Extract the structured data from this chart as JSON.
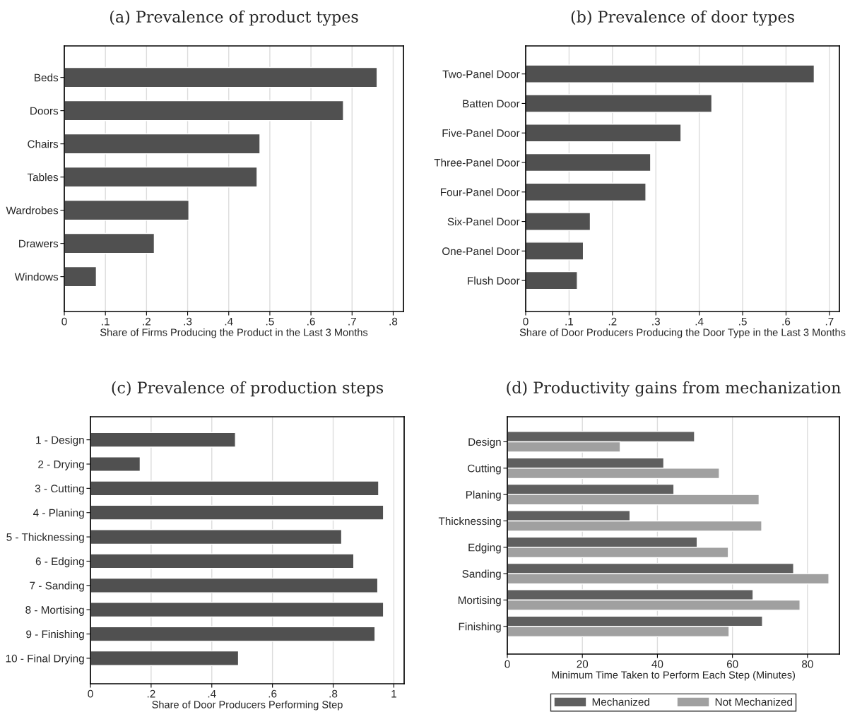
{
  "chart_data": [
    {
      "type": "bar",
      "orientation": "horizontal",
      "title": "(a) Prevalence of product types",
      "xlabel": "Share of Firms Producing the Product in the Last 3 Months",
      "categories": [
        "Beds",
        "Doors",
        "Chairs",
        "Tables",
        "Wardrobes",
        "Drawers",
        "Windows"
      ],
      "series": [
        {
          "color": "#505050",
          "values": [
            0.761,
            0.679,
            0.476,
            0.469,
            0.303,
            0.219,
            0.078
          ]
        }
      ],
      "xlim": [
        0,
        0.825
      ],
      "xticks": [
        0,
        {
          "value": 0.1,
          "label": ".1"
        },
        {
          "value": 0.2,
          "label": ".2"
        },
        {
          "value": 0.3,
          "label": ".3"
        },
        {
          "value": 0.4,
          "label": ".4"
        },
        {
          "value": 0.5,
          "label": ".5"
        },
        {
          "value": 0.6,
          "label": ".6"
        },
        {
          "value": 0.7,
          "label": ".7"
        },
        {
          "value": 0.8,
          "label": ".8"
        }
      ],
      "grid": "x"
    },
    {
      "type": "bar",
      "orientation": "horizontal",
      "title": "(b) Prevalence of door types",
      "xlabel": "Share of Door Producers Producing the Door Type in the Last 3 Months",
      "categories": [
        "Two-Panel Door",
        "Batten Door",
        "Five-Panel Door",
        "Three-Panel Door",
        "Four-Panel Door",
        "Six-Panel Door",
        "One-Panel Door",
        "Flush Door"
      ],
      "series": [
        {
          "color": "#505050",
          "values": [
            0.665,
            0.429,
            0.358,
            0.288,
            0.277,
            0.149,
            0.133,
            0.119
          ]
        }
      ],
      "xlim": [
        0,
        0.723
      ],
      "xticks": [
        0,
        {
          "value": 0.1,
          "label": ".1"
        },
        {
          "value": 0.2,
          "label": ".2"
        },
        {
          "value": 0.3,
          "label": ".3"
        },
        {
          "value": 0.4,
          "label": ".4"
        },
        {
          "value": 0.5,
          "label": ".5"
        },
        {
          "value": 0.6,
          "label": ".6"
        },
        {
          "value": 0.7,
          "label": ".7"
        }
      ],
      "grid": "x"
    },
    {
      "type": "bar",
      "orientation": "horizontal",
      "title": "(c) Prevalence of production steps",
      "xlabel": "Share of Door Producers Performing Step",
      "categories": [
        "1 - Design",
        "2 - Drying",
        "3 - Cutting",
        "4 - Planing",
        "5 - Thicknessing",
        "6 - Edging",
        "7 - Sanding",
        "8 - Mortising",
        "9 - Finishing",
        "10 - Final Drying"
      ],
      "series": [
        {
          "color": "#505050",
          "values": [
            0.478,
            0.164,
            0.95,
            0.966,
            0.828,
            0.868,
            0.947,
            0.966,
            0.938,
            0.488
          ]
        }
      ],
      "xlim": [
        0,
        1.034
      ],
      "xticks": [
        0,
        {
          "value": 0.2,
          "label": ".2"
        },
        {
          "value": 0.4,
          "label": ".4"
        },
        {
          "value": 0.6,
          "label": ".6"
        },
        {
          "value": 0.8,
          "label": ".8"
        },
        1
      ],
      "grid": "x"
    },
    {
      "type": "bar",
      "orientation": "horizontal",
      "title": "(d) Productivity gains from mechanization",
      "xlabel": "Minimum Time Taken to Perform Each Step (Minutes)",
      "categories": [
        "Design",
        "Cutting",
        "Planing",
        "Thicknessing",
        "Edging",
        "Sanding",
        "Mortising",
        "Finishing"
      ],
      "series": [
        {
          "name": "Mechanized",
          "color": "#5f5f5f",
          "values": [
            49.9,
            41.7,
            44.4,
            32.7,
            50.6,
            76.3,
            65.5,
            68.0
          ]
        },
        {
          "name": "Not Mechanized",
          "color": "#a0a0a0",
          "values": [
            30.1,
            56.5,
            67.1,
            67.8,
            58.9,
            85.7,
            78.0,
            59.1
          ]
        }
      ],
      "xlim": [
        0,
        88.5
      ],
      "xticks": [
        0,
        20,
        40,
        60,
        80
      ],
      "grid": "x",
      "legend": "bottom"
    }
  ]
}
